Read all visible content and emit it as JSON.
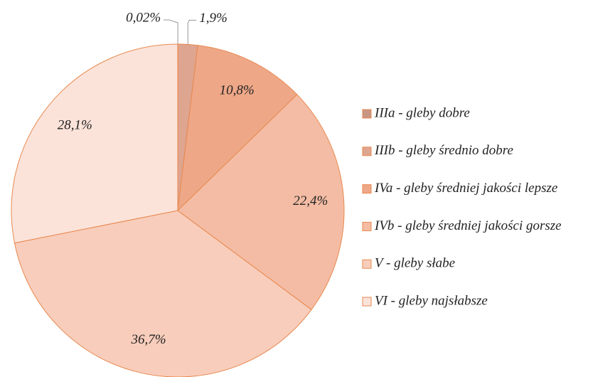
{
  "chart_data": {
    "type": "pie",
    "categories": [
      "IIIa - gleby dobre",
      "IIIb - gleby średnio dobre",
      "IVa - gleby średniej jakości lepsze",
      "IVb - gleby średniej jakości gorsze",
      "V - gleby słabe",
      "VI - gleby najsłabsze"
    ],
    "values": [
      0.02,
      1.9,
      10.8,
      22.4,
      36.7,
      28.1
    ],
    "value_labels": [
      "0,02%",
      "1,9%",
      "10,8%",
      "22,4%",
      "36,7%",
      "28,1%"
    ],
    "colors": [
      "#c99684",
      "#dea590",
      "#eea888",
      "#f4bca4",
      "#f8cdbb",
      "#fbe3da"
    ],
    "legend": "right"
  }
}
